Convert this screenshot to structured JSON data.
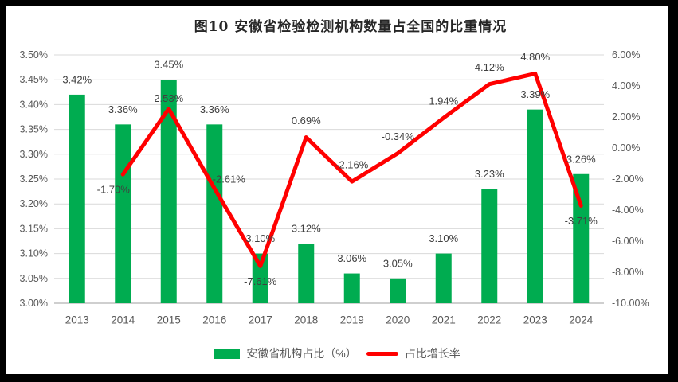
{
  "title": "图10 安徽省检验检测机构数量占全国的比重情况",
  "chart_data": {
    "type": "combo",
    "title": "图10 安徽省检验检测机构数量占全国的比重情况",
    "categories": [
      "2013",
      "2014",
      "2015",
      "2016",
      "2017",
      "2018",
      "2019",
      "2020",
      "2021",
      "2022",
      "2023",
      "2024"
    ],
    "series": [
      {
        "name": "安徽省机构占比（%）",
        "type": "bar",
        "axis": "left",
        "color": "#00AC50",
        "values": [
          3.42,
          3.36,
          3.45,
          3.36,
          3.1,
          3.12,
          3.06,
          3.05,
          3.1,
          3.23,
          3.39,
          3.26
        ],
        "labels": [
          "3.42%",
          "3.36%",
          "3.45%",
          "3.36%",
          "3.10%",
          "3.12%",
          "3.06%",
          "3.05%",
          "3.10%",
          "3.23%",
          "3.39%",
          "3.26%"
        ]
      },
      {
        "name": "占比增长率",
        "type": "line",
        "axis": "right",
        "color": "#FF0000",
        "values": [
          null,
          -1.7,
          2.53,
          -2.61,
          -7.61,
          0.69,
          -2.16,
          -0.34,
          1.94,
          4.12,
          4.8,
          -3.71
        ],
        "labels": [
          null,
          "-1.70%",
          "2.53%",
          "-2.61%",
          "-7.61%",
          "0.69%",
          "-2.16%",
          "-0.34%",
          "1.94%",
          "4.12%",
          "4.80%",
          "-3.71%"
        ],
        "label_side": [
          null,
          "below",
          "above",
          "above",
          "below",
          "above",
          "above",
          "above",
          "above",
          "above",
          "above",
          "below"
        ]
      }
    ],
    "axes": {
      "left": {
        "min": 3.0,
        "max": 3.5,
        "step": 0.05,
        "ticks": [
          "3.00%",
          "3.05%",
          "3.10%",
          "3.15%",
          "3.20%",
          "3.25%",
          "3.30%",
          "3.35%",
          "3.40%",
          "3.45%",
          "3.50%"
        ]
      },
      "right": {
        "min": -10.0,
        "max": 6.0,
        "step": 2.0,
        "ticks": [
          "-10.00%",
          "-8.00%",
          "-6.00%",
          "-4.00%",
          "-2.00%",
          "0.00%",
          "2.00%",
          "4.00%",
          "6.00%"
        ]
      }
    },
    "grid": true,
    "legend_position": "bottom",
    "colors": {
      "grid": "#D9D9D9",
      "axis_line": "#BFBFBF",
      "tick_text": "#595959",
      "data_label_text": "#404040",
      "title_text": "#262626",
      "frame": "#000000"
    }
  }
}
